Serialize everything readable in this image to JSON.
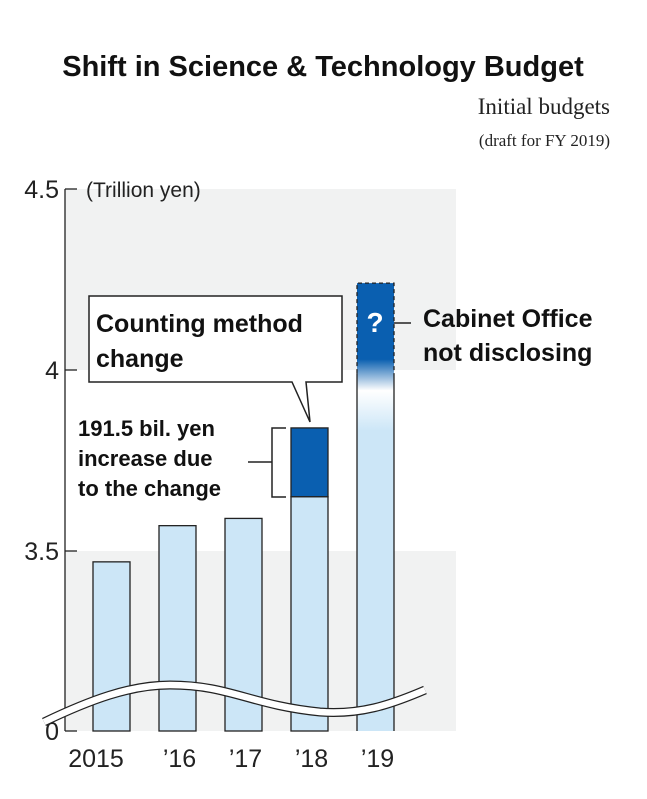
{
  "chart_data": {
    "type": "bar",
    "title": "Shift in Science & Technology Budget",
    "subtitle": [
      "Initial budgets",
      "(draft for FY 2019)"
    ],
    "ylabel": "(Trillion yen)",
    "ylim": [
      3.3,
      4.5
    ],
    "y_axis_broken": true,
    "yticks": [
      "4.5",
      "4",
      "3.5",
      "0"
    ],
    "categories": [
      "2015",
      "'16",
      "'17",
      "'18",
      "'19"
    ],
    "series": [
      {
        "values": [
          3.47,
          3.57,
          3.59,
          3.65,
          4.24
        ]
      },
      {
        "values": [
          0,
          0,
          0,
          0.19,
          null
        ]
      }
    ],
    "annotations": {
      "callout": [
        "Counting method",
        "change"
      ],
      "increase_note": [
        "191.5 bil. yen",
        "increase due",
        "to the change"
      ],
      "unknown_mark": "?",
      "unknown_note": [
        "Cabinet Office",
        "not disclosing"
      ]
    },
    "colors": {
      "base": "#cce6f7",
      "increase": "#0a5fb0",
      "background": "#f1f2f2",
      "outline": "#222222"
    }
  }
}
